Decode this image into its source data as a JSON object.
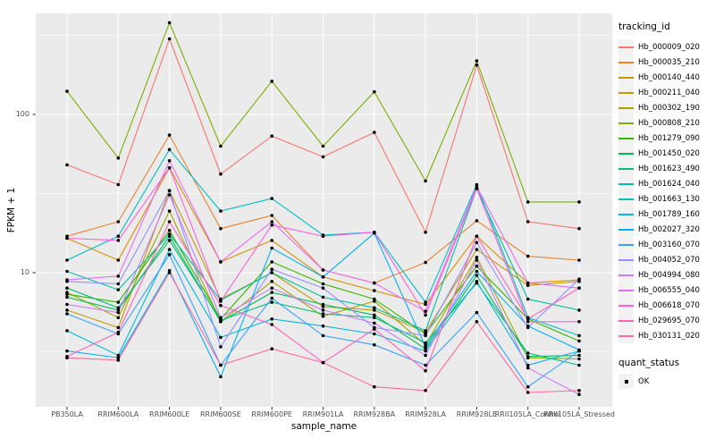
{
  "chart_data": {
    "type": "line",
    "xlabel": "sample_name",
    "ylabel": "FPKM + 1",
    "y_scale": "log10",
    "y_ticks": [
      10,
      100
    ],
    "y_minor_ticks": [
      3.162,
      31.62,
      316.2
    ],
    "ylim": [
      1.4,
      435
    ],
    "grid": true,
    "panel_bg": "#EBEBEB",
    "grid_color": "#FFFFFF",
    "point_color": "#000000",
    "categories": [
      "PB350LA",
      "RRIM600LA",
      "RRIM600LE",
      "RRIM600SE",
      "RRIM600PE",
      "RRIM901LA",
      "RRIM928BA",
      "RRIM928LA",
      "RRIM928LE",
      "RRII105LA_Control",
      "RRII105LA_Stressed"
    ],
    "series": [
      {
        "name": "Hb_000009_020",
        "color": "#F8766D",
        "values": [
          48,
          36,
          300,
          42,
          73,
          54,
          77,
          18,
          205,
          21,
          19
        ]
      },
      {
        "name": "Hb_000035_210",
        "color": "#EA8331",
        "values": [
          17,
          21,
          74,
          19,
          23,
          10.4,
          8.6,
          11.6,
          21.3,
          12.7,
          12
        ]
      },
      {
        "name": "Hb_000140_440",
        "color": "#D89000",
        "values": [
          16.5,
          12,
          46,
          11.7,
          16,
          9.4,
          7.7,
          6.3,
          17,
          8.6,
          9
        ]
      },
      {
        "name": "Hb_000211_040",
        "color": "#C09B00",
        "values": [
          5.8,
          4.5,
          33,
          6.8,
          10,
          6.1,
          5.8,
          4.2,
          14,
          8.3,
          8.8
        ]
      },
      {
        "name": "Hb_000302_190",
        "color": "#A3A500",
        "values": [
          7.5,
          5.2,
          24.5,
          4.9,
          8.8,
          5.3,
          6.6,
          3.5,
          12.5,
          2.9,
          2.85
        ]
      },
      {
        "name": "Hb_000808_210",
        "color": "#7CAE00",
        "values": [
          140,
          53,
          380,
          63,
          162,
          63,
          139,
          38,
          218,
          28,
          28
        ]
      },
      {
        "name": "Hb_001279_090",
        "color": "#39B600",
        "values": [
          7.3,
          6.5,
          18.5,
          5.1,
          11.7,
          8.5,
          6.8,
          4.1,
          11,
          5.1,
          3.7
        ]
      },
      {
        "name": "Hb_001450_020",
        "color": "#00BB4E",
        "values": [
          7,
          5.8,
          17,
          4.9,
          7.5,
          6.3,
          5.4,
          3.3,
          9.6,
          2.95,
          3
        ]
      },
      {
        "name": "Hb_001623_490",
        "color": "#00BF7D",
        "values": [
          8,
          6,
          16,
          5,
          6.5,
          5.5,
          5.2,
          3.6,
          8.6,
          3.1,
          2.6
        ]
      },
      {
        "name": "Hb_001624_040",
        "color": "#00C1A3",
        "values": [
          10.2,
          7.8,
          17.5,
          6.7,
          10,
          7,
          6,
          4.3,
          34,
          6.8,
          5.8
        ]
      },
      {
        "name": "Hb_001663_130",
        "color": "#00BFC4",
        "values": [
          12,
          17,
          60,
          24.5,
          29.4,
          17.3,
          18,
          6.5,
          36,
          5.2,
          4
        ]
      },
      {
        "name": "Hb_001789_160",
        "color": "#00BAE0",
        "values": [
          4.3,
          3,
          14,
          3.9,
          5.1,
          4.6,
          4.1,
          3.2,
          8.8,
          2.6,
          3.2
        ]
      },
      {
        "name": "Hb_002027_320",
        "color": "#00B0F6",
        "values": [
          3.2,
          2.9,
          10.3,
          2.2,
          14.3,
          9.4,
          17.8,
          3.4,
          10.2,
          4.6,
          3.25
        ]
      },
      {
        "name": "Hb_003160_070",
        "color": "#35A2FF",
        "values": [
          5.5,
          4.1,
          13,
          2.6,
          6.9,
          4,
          3.5,
          2.6,
          5.6,
          1.9,
          3.2
        ]
      },
      {
        "name": "Hb_004052_070",
        "color": "#9590FF",
        "values": [
          8.8,
          8.5,
          33,
          3.4,
          10.5,
          8,
          4.5,
          4,
          15.5,
          4.5,
          9.1
        ]
      },
      {
        "name": "Hb_004994_080",
        "color": "#C77CFF",
        "values": [
          6.3,
          5.6,
          31,
          5.2,
          8,
          5.8,
          4.8,
          3,
          12,
          2.5,
          1.7
        ]
      },
      {
        "name": "Hb_006555_040",
        "color": "#E76BF3",
        "values": [
          9,
          9.5,
          51,
          11.7,
          21,
          10.4,
          8.6,
          5.7,
          35,
          8.6,
          8
        ]
      },
      {
        "name": "Hb_006618_070",
        "color": "#FA62DB",
        "values": [
          16.5,
          16,
          46,
          6.6,
          20,
          17,
          18,
          5.4,
          34,
          4.9,
          4.9
        ]
      },
      {
        "name": "Hb_029695_070",
        "color": "#FF62BC",
        "values": [
          2.95,
          4.2,
          21,
          6.2,
          4.7,
          2.7,
          4.4,
          2.4,
          17,
          5.1,
          8
        ]
      },
      {
        "name": "Hb_030131_020",
        "color": "#FF6A98",
        "values": [
          2.9,
          2.8,
          10,
          2.6,
          3.3,
          2.7,
          1.9,
          1.8,
          4.9,
          1.75,
          1.8
        ]
      }
    ]
  },
  "legend": {
    "title": "tracking_id"
  },
  "legend2": {
    "title": "quant_status",
    "items": [
      {
        "label": "OK",
        "symbol": "black-square-point"
      }
    ]
  }
}
